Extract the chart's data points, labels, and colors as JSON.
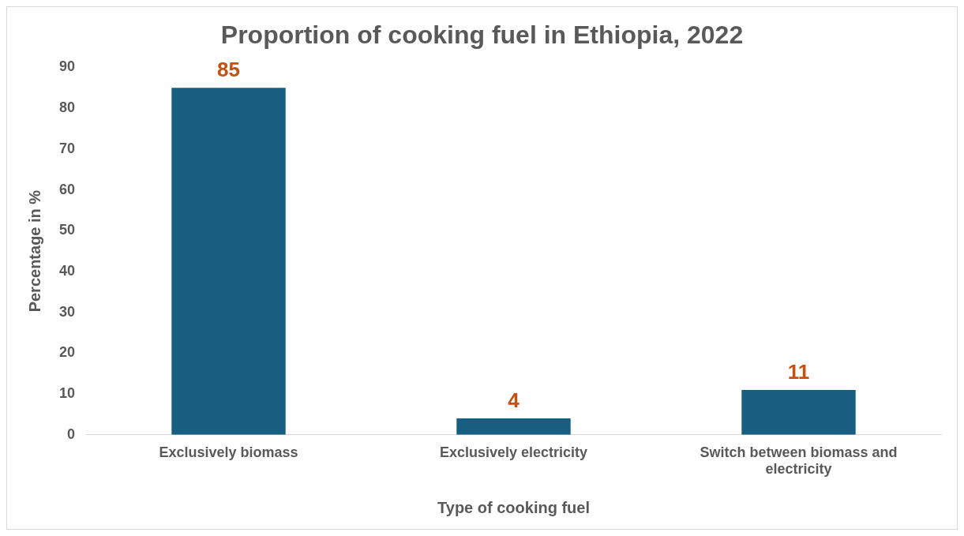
{
  "chart_data": {
    "type": "bar",
    "title": "Proportion of cooking fuel in Ethiopia, 2022",
    "xlabel": "Type of cooking fuel",
    "ylabel": "Percentage in %",
    "categories": [
      "Exclusively biomass",
      "Exclusively electricity",
      "Switch between biomass and electricity"
    ],
    "values": [
      85,
      4,
      11
    ],
    "color": "#175e80",
    "ylim": [
      0,
      90
    ],
    "yticks": [
      0,
      10,
      20,
      30,
      40,
      50,
      60,
      70,
      80,
      90
    ],
    "grid": false,
    "legend": false,
    "data_labels": true
  }
}
